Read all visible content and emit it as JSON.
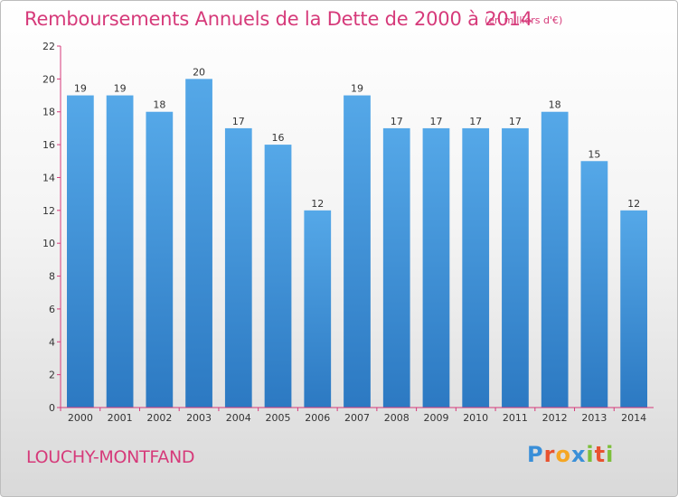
{
  "title": "Remboursements Annuels de la Dette de 2000 à 2014",
  "subtitle": "(en milliers d'€)",
  "commune": "LOUCHY-MONTFAND",
  "logo": {
    "letters": [
      "P",
      "r",
      "o",
      "x",
      "i",
      "t",
      "i"
    ],
    "colors": [
      "#3a8fd8",
      "#e8522f",
      "#f5a623",
      "#3a8fd8",
      "#7cbf3a",
      "#e8522f",
      "#7cbf3a"
    ]
  },
  "colors": {
    "bar": "#4c9fe0",
    "bar_dark": "#2f7fc8",
    "title": "#d63a7a",
    "axis": "#d63a7a"
  },
  "chart_data": {
    "type": "bar",
    "title": "Remboursements Annuels de la Dette de 2000 à 2014",
    "categories": [
      "2000",
      "2001",
      "2002",
      "2003",
      "2004",
      "2005",
      "2006",
      "2007",
      "2008",
      "2009",
      "2010",
      "2011",
      "2012",
      "2013",
      "2014"
    ],
    "values": [
      19,
      19,
      18,
      20,
      17,
      16,
      12,
      19,
      17,
      17,
      17,
      17,
      18,
      15,
      12
    ],
    "data_labels": [
      "19",
      "19",
      "18",
      "20",
      "17",
      "16",
      "12",
      "19",
      "17",
      "17",
      "17",
      "17",
      "18",
      "15",
      "12"
    ],
    "yticks": [
      "0",
      "2",
      "4",
      "6",
      "8",
      "10",
      "12",
      "14",
      "16",
      "18",
      "20",
      "22"
    ],
    "ylim": [
      0,
      22
    ],
    "grid": false,
    "xlabel": "",
    "ylabel": ""
  }
}
